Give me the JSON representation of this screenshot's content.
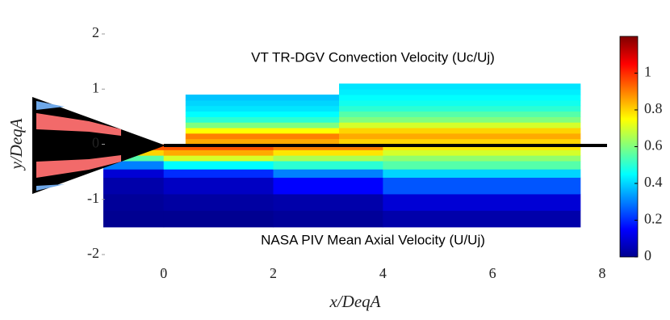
{
  "chart_data": {
    "type": "heatmap",
    "xlabel": "x/DeqA",
    "ylabel": "y/DeqA",
    "xlim": [
      -1.1,
      8
    ],
    "ylim": [
      -2,
      2
    ],
    "xticks": [
      0,
      2,
      4,
      6,
      8
    ],
    "yticks": [
      -2,
      -1,
      0,
      1,
      2
    ],
    "annotations": [
      "VT TR-DGV Convection Velocity (Uc/Uj)",
      "NASA PIV Mean Axial Velocity (U/Uj)"
    ],
    "colormap": "jet",
    "clim": [
      0,
      1.2
    ],
    "cticks": [
      0,
      0.2,
      0.4,
      0.6,
      0.8,
      1
    ],
    "fields": [
      {
        "x": [
          0.4,
          3.2,
          7.6
        ],
        "y": [
          0,
          0.1,
          0.2,
          0.3,
          0.4,
          0.5,
          0.6,
          0.7,
          0.8,
          0.9,
          1.0,
          1.1
        ],
        "values": [
          [
            0.85,
            0.8
          ],
          [
            0.9,
            0.85
          ],
          [
            0.75,
            0.8
          ],
          [
            0.6,
            0.7
          ],
          [
            0.5,
            0.6
          ],
          [
            0.45,
            0.55
          ],
          [
            0.42,
            0.5
          ],
          [
            0.4,
            0.47
          ],
          [
            0.38,
            0.45
          ],
          [
            null,
            0.43
          ],
          [
            null,
            0.42
          ]
        ]
      },
      {
        "x": [
          -1.1,
          0,
          2,
          4,
          7.6
        ],
        "y": [
          -1.5,
          -1.2,
          -0.9,
          -0.6,
          -0.45,
          -0.3,
          -0.2,
          -0.1,
          0
        ],
        "values": [
          [
            0.02,
            0.02,
            0.03,
            0.05
          ],
          [
            0.03,
            0.04,
            0.05,
            0.1
          ],
          [
            0.05,
            0.08,
            0.15,
            0.25
          ],
          [
            0.1,
            0.2,
            0.3,
            0.4
          ],
          [
            0.3,
            0.45,
            0.5,
            0.55
          ],
          [
            0.55,
            0.7,
            0.65,
            0.62
          ],
          [
            0.8,
            0.85,
            0.78,
            0.7
          ],
          [
            0.95,
            0.95,
            0.9,
            0.78
          ]
        ]
      }
    ]
  }
}
